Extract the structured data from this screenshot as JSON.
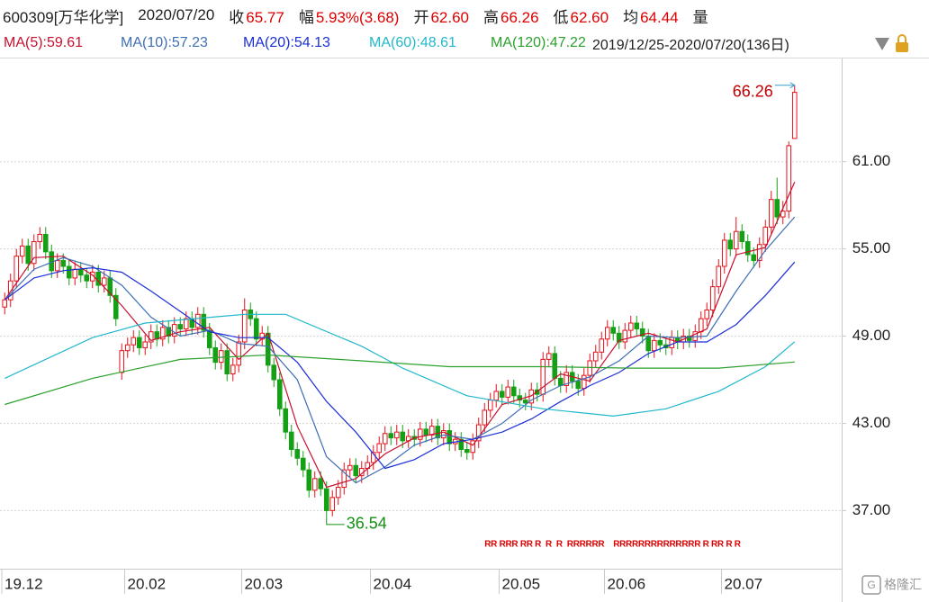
{
  "header": {
    "ticker": "600309[万华化学]",
    "date": "2020/07/20",
    "fields": [
      {
        "label": "收",
        "value": "65.77"
      },
      {
        "label": "幅",
        "value": "5.93%(3.68)"
      },
      {
        "label": "开",
        "value": "62.60"
      },
      {
        "label": "高",
        "value": "66.26"
      },
      {
        "label": "低",
        "value": "62.60"
      },
      {
        "label": "均",
        "value": "64.44"
      },
      {
        "label": "量",
        "value": ""
      }
    ],
    "date_range": "2019/12/25-2020/07/20(136日)",
    "watermark": "格隆汇"
  },
  "chart_data": {
    "type": "candlestick",
    "up_color": "#e8101a",
    "down_color": "#14a014",
    "ylim": [
      33,
      68.1
    ],
    "yticks": [
      {
        "value": 37,
        "label": "37.00"
      },
      {
        "value": 43,
        "label": "43.00"
      },
      {
        "value": 49,
        "label": "49.00"
      },
      {
        "value": 55,
        "label": "55.00"
      },
      {
        "value": 61,
        "label": "61.00"
      }
    ],
    "xticks": [
      {
        "value": 0,
        "label": "19.12"
      },
      {
        "value": 21,
        "label": "20.02"
      },
      {
        "value": 41,
        "label": "20.03"
      },
      {
        "value": 63,
        "label": "20.04"
      },
      {
        "value": 85,
        "label": "20.05"
      },
      {
        "value": 103,
        "label": "20.06"
      },
      {
        "value": 123,
        "label": "20.07"
      }
    ],
    "grid": true,
    "candles": {
      "open": [
        51.0,
        51.5,
        52.8,
        54.5,
        55.2,
        54.0,
        55.5,
        56.0,
        54.8,
        53.5,
        54.2,
        53.8,
        53.0,
        53.6,
        53.2,
        52.8,
        53.4,
        52.5,
        53.0,
        51.8,
        46.5,
        48.0,
        48.4,
        48.9,
        48.2,
        48.6,
        49.3,
        48.8,
        49.6,
        49.0,
        49.8,
        49.5,
        50.2,
        49.6,
        50.5,
        49.4,
        48.2,
        47.2,
        48.0,
        46.4,
        47.0,
        48.6,
        50.8,
        50.2,
        48.8,
        49.2,
        47.0,
        46.0,
        44.0,
        42.4,
        41.2,
        40.6,
        39.8,
        38.4,
        39.2,
        38.5,
        37.0,
        37.9,
        38.6,
        39.8,
        40.1,
        39.4,
        39.9,
        40.3,
        41.0,
        41.6,
        42.3,
        42.0,
        42.4,
        41.8,
        42.1,
        41.9,
        42.6,
        42.2,
        42.8,
        42.0,
        42.5,
        41.6,
        41.9,
        41.2,
        41.0,
        41.8,
        42.9,
        43.9,
        44.6,
        45.2,
        44.8,
        45.5,
        44.9,
        44.6,
        44.4,
        45.3,
        45.0,
        47.4,
        47.8,
        46.1,
        45.6,
        46.5,
        45.9,
        45.4,
        46.3,
        47.3,
        47.9,
        48.8,
        49.6,
        49.2,
        48.6,
        49.4,
        49.9,
        49.5,
        49.0,
        48.0,
        48.7,
        48.4,
        48.2,
        48.9,
        48.6,
        49.0,
        48.7,
        49.3,
        50.2,
        50.8,
        52.4,
        53.8,
        55.6,
        55.0,
        56.2,
        55.5,
        54.6,
        54.2,
        55.3,
        56.5,
        58.4,
        57.2,
        57.6,
        62.6
      ],
      "high": [
        52.0,
        53.3,
        55.0,
        55.7,
        55.7,
        56.0,
        56.5,
        56.5,
        55.3,
        54.7,
        54.7,
        54.3,
        54.1,
        54.1,
        53.7,
        53.9,
        53.9,
        53.5,
        53.5,
        52.3,
        48.5,
        48.9,
        49.4,
        49.4,
        49.1,
        49.8,
        49.8,
        50.1,
        50.1,
        50.3,
        50.3,
        50.7,
        50.7,
        51.0,
        51.0,
        49.9,
        48.7,
        48.5,
        48.5,
        47.5,
        49.1,
        51.6,
        51.3,
        50.7,
        49.7,
        49.7,
        47.5,
        46.5,
        44.5,
        42.9,
        41.7,
        41.1,
        40.3,
        39.7,
        39.7,
        39.0,
        38.4,
        39.1,
        40.3,
        40.6,
        40.6,
        40.4,
        40.8,
        41.5,
        42.1,
        42.8,
        42.8,
        42.9,
        42.9,
        42.6,
        42.6,
        43.1,
        43.1,
        43.3,
        43.3,
        43.0,
        43.0,
        42.4,
        42.4,
        41.7,
        42.3,
        43.4,
        44.4,
        45.1,
        45.7,
        45.7,
        46.0,
        46.0,
        45.4,
        45.1,
        45.8,
        45.8,
        47.9,
        48.3,
        48.3,
        46.6,
        47.0,
        47.0,
        46.4,
        46.8,
        47.8,
        48.4,
        49.3,
        50.1,
        50.1,
        49.7,
        49.9,
        50.4,
        50.4,
        50.0,
        49.5,
        49.2,
        49.2,
        48.9,
        49.4,
        49.4,
        49.5,
        49.5,
        49.8,
        50.7,
        51.3,
        52.9,
        54.3,
        56.1,
        56.1,
        57.2,
        56.7,
        56.0,
        55.1,
        55.8,
        57.0,
        59.0,
        59.9,
        58.3,
        62.4,
        66.26
      ],
      "low": [
        50.5,
        51.0,
        52.3,
        54.0,
        53.5,
        53.5,
        55.0,
        54.3,
        53.0,
        53.0,
        53.3,
        52.5,
        52.5,
        52.7,
        52.3,
        52.3,
        52.0,
        52.0,
        51.3,
        49.7,
        46.0,
        47.5,
        47.9,
        47.7,
        47.7,
        48.1,
        48.3,
        48.3,
        48.5,
        48.5,
        49.0,
        49.0,
        49.1,
        49.1,
        48.9,
        47.7,
        46.7,
        46.7,
        45.9,
        45.9,
        46.5,
        48.1,
        49.7,
        48.3,
        48.3,
        46.5,
        45.5,
        43.5,
        41.9,
        40.7,
        40.1,
        39.3,
        37.9,
        37.9,
        38.0,
        36.54,
        36.6,
        37.4,
        38.1,
        39.3,
        38.9,
        38.9,
        39.4,
        39.8,
        40.5,
        41.1,
        41.5,
        41.5,
        41.3,
        41.3,
        41.4,
        41.4,
        41.7,
        41.7,
        41.5,
        41.5,
        41.1,
        41.1,
        40.7,
        40.5,
        40.5,
        41.3,
        42.4,
        43.4,
        44.1,
        44.3,
        44.3,
        44.4,
        44.1,
        43.9,
        43.9,
        44.5,
        44.5,
        46.9,
        45.6,
        45.1,
        45.1,
        45.4,
        44.9,
        44.9,
        45.8,
        46.8,
        47.4,
        48.3,
        48.7,
        48.1,
        48.1,
        48.9,
        49.0,
        48.5,
        47.5,
        47.5,
        47.9,
        47.7,
        47.7,
        48.1,
        48.1,
        48.2,
        48.2,
        48.8,
        49.7,
        50.3,
        51.9,
        53.3,
        54.5,
        54.5,
        55.0,
        54.1,
        53.7,
        53.7,
        54.8,
        56.0,
        56.7,
        56.7,
        57.1,
        62.6
      ],
      "close": [
        51.5,
        52.8,
        54.5,
        55.2,
        54.0,
        55.5,
        56.0,
        54.8,
        53.5,
        54.2,
        53.8,
        53.0,
        53.6,
        53.2,
        52.8,
        53.4,
        52.5,
        53.0,
        51.8,
        50.2,
        48.0,
        48.4,
        48.9,
        48.2,
        48.6,
        49.3,
        48.8,
        49.6,
        49.0,
        49.8,
        49.5,
        50.2,
        49.6,
        50.5,
        49.4,
        48.2,
        47.2,
        48.0,
        46.4,
        47.0,
        48.6,
        50.8,
        50.2,
        48.8,
        49.2,
        47.0,
        46.0,
        44.0,
        42.4,
        41.2,
        40.6,
        39.8,
        38.4,
        39.2,
        38.5,
        37.0,
        37.9,
        38.6,
        39.8,
        40.1,
        39.4,
        39.9,
        40.3,
        41.0,
        41.6,
        42.3,
        42.0,
        42.4,
        41.8,
        42.1,
        41.9,
        42.6,
        42.2,
        42.8,
        42.0,
        42.5,
        41.6,
        41.9,
        41.2,
        41.0,
        41.8,
        42.9,
        43.9,
        44.6,
        45.2,
        44.8,
        45.5,
        44.9,
        44.6,
        44.4,
        45.3,
        45.0,
        47.4,
        47.8,
        46.1,
        45.6,
        46.5,
        45.9,
        45.4,
        46.3,
        47.3,
        47.9,
        48.8,
        49.6,
        49.2,
        48.6,
        49.4,
        49.9,
        49.5,
        49.0,
        48.0,
        48.7,
        48.4,
        48.2,
        48.9,
        48.6,
        49.0,
        48.7,
        49.3,
        50.2,
        50.8,
        52.4,
        53.8,
        55.6,
        55.0,
        56.2,
        55.5,
        54.6,
        54.2,
        55.3,
        56.5,
        58.4,
        57.2,
        57.6,
        62.1,
        65.77
      ]
    },
    "ma": [
      {
        "label": "MA(5):59.61",
        "color": "#c8102e",
        "x": [
          0,
          5,
          10,
          15,
          20,
          25,
          30,
          35,
          40,
          45,
          50,
          55,
          60,
          65,
          70,
          75,
          80,
          85,
          90,
          95,
          100,
          105,
          110,
          115,
          120,
          125,
          130,
          135
        ],
        "values": [
          51.5,
          54.4,
          54.5,
          53.2,
          51.1,
          48.7,
          49.3,
          49.6,
          47.4,
          49.2,
          42.8,
          38.6,
          39.2,
          40.9,
          42.0,
          42.4,
          41.5,
          44.3,
          44.9,
          46.4,
          45.9,
          48.7,
          49.2,
          48.6,
          49.5,
          54.6,
          55.1,
          59.6
        ]
      },
      {
        "label": "MA(10):57.23",
        "color": "#3f6fb5",
        "x": [
          0,
          5,
          10,
          15,
          20,
          25,
          30,
          35,
          40,
          45,
          50,
          55,
          60,
          65,
          70,
          75,
          80,
          85,
          90,
          95,
          100,
          105,
          110,
          115,
          120,
          125,
          130,
          135
        ],
        "values": [
          51.5,
          53.6,
          54.4,
          53.8,
          52.5,
          50.3,
          49.0,
          49.4,
          48.5,
          48.3,
          46.0,
          40.7,
          38.9,
          40.0,
          41.5,
          42.2,
          41.9,
          43.0,
          44.6,
          45.6,
          46.2,
          47.3,
          49.0,
          48.9,
          49.0,
          52.1,
          54.9,
          57.2
        ]
      },
      {
        "label": "MA(20):54.13",
        "color": "#1b2fd6",
        "x": [
          0,
          5,
          10,
          15,
          20,
          25,
          30,
          35,
          40,
          45,
          50,
          55,
          60,
          65,
          70,
          75,
          80,
          85,
          90,
          95,
          100,
          105,
          110,
          115,
          120,
          125,
          130,
          135
        ],
        "values": [
          51.5,
          53.0,
          53.5,
          53.7,
          53.4,
          52.1,
          50.7,
          49.3,
          48.9,
          48.9,
          47.2,
          44.5,
          42.4,
          39.9,
          40.5,
          41.6,
          41.9,
          42.4,
          43.3,
          44.5,
          45.6,
          46.5,
          47.8,
          48.6,
          48.6,
          49.8,
          51.8,
          54.1
        ]
      },
      {
        "label": "MA(60):48.61",
        "color": "#22b8cc",
        "x": [
          0,
          15,
          24,
          41,
          48,
          61,
          68,
          79,
          92,
          104,
          113,
          122,
          130,
          135
        ],
        "values": [
          46.1,
          48.9,
          49.9,
          50.5,
          50.5,
          48.3,
          46.8,
          44.9,
          44.0,
          43.5,
          44.0,
          45.2,
          46.9,
          48.61
        ]
      },
      {
        "label": "MA(120):47.22",
        "color": "#2ca02c",
        "x": [
          0,
          15,
          30,
          45,
          61,
          76,
          92,
          107,
          122,
          135
        ],
        "values": [
          44.3,
          46.1,
          47.4,
          47.7,
          47.3,
          46.9,
          46.9,
          46.8,
          46.8,
          47.22
        ]
      }
    ],
    "annotations": [
      {
        "text": "66.26",
        "value": 66.26,
        "index": 135,
        "color": "#c00000"
      },
      {
        "text": "36.54",
        "value": 36.54,
        "index": 55,
        "color": "#129012"
      }
    ],
    "markers_text": "RR RRR RR R  R  R  RRRRRR    RRRRRRRRRRRRRR R RR R R"
  }
}
